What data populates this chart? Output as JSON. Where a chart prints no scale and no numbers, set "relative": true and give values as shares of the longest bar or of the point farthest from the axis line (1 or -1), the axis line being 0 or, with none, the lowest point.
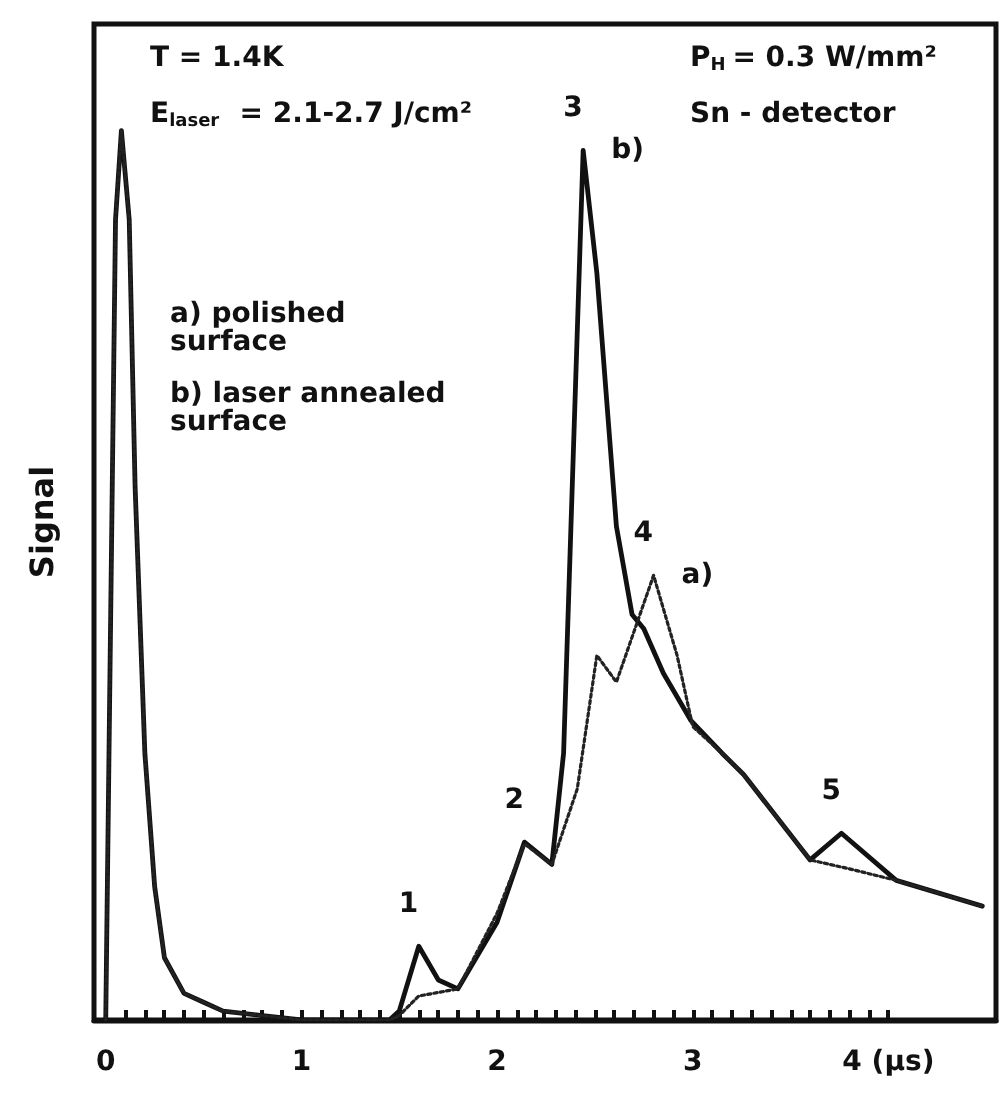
{
  "chart_data": {
    "type": "line",
    "relative": true,
    "ylabel": "Signal",
    "xlim": [
      -0.06,
      4.55
    ],
    "xticks": [
      0,
      {
        "value": 0.1,
        "label": null
      },
      {
        "value": 0.2,
        "label": null
      },
      {
        "value": 0.3,
        "label": null
      },
      {
        "value": 0.4,
        "label": null
      },
      {
        "value": 0.5,
        "label": null
      },
      {
        "value": 0.6,
        "label": null
      },
      {
        "value": 0.7,
        "label": null
      },
      {
        "value": 0.8,
        "label": null
      },
      {
        "value": 0.9,
        "label": null
      },
      1,
      {
        "value": 1.1,
        "label": null
      },
      {
        "value": 1.2,
        "label": null
      },
      {
        "value": 1.3,
        "label": null
      },
      {
        "value": 1.4,
        "label": null
      },
      {
        "value": 1.5,
        "label": null
      },
      {
        "value": 1.6,
        "label": null
      },
      {
        "value": 1.7,
        "label": null
      },
      {
        "value": 1.8,
        "label": null
      },
      {
        "value": 1.9,
        "label": null
      },
      2,
      {
        "value": 2.1,
        "label": null
      },
      {
        "value": 2.2,
        "label": null
      },
      {
        "value": 2.3,
        "label": null
      },
      {
        "value": 2.4,
        "label": null
      },
      {
        "value": 2.5,
        "label": null
      },
      {
        "value": 2.6,
        "label": null
      },
      {
        "value": 2.7,
        "label": null
      },
      {
        "value": 2.8,
        "label": null
      },
      {
        "value": 2.9,
        "label": null
      },
      3,
      {
        "value": 3.1,
        "label": null
      },
      {
        "value": 3.2,
        "label": null
      },
      {
        "value": 3.3,
        "label": null
      },
      {
        "value": 3.4,
        "label": null
      },
      {
        "value": 3.5,
        "label": null
      },
      {
        "value": 3.6,
        "label": null
      },
      {
        "value": 3.7,
        "label": null
      },
      {
        "value": 3.8,
        "label": null
      },
      {
        "value": 3.9,
        "label": null
      },
      {
        "value": 4,
        "label": "4 (µs)"
      }
    ],
    "grid": false,
    "legend": false,
    "series": [
      {
        "name": "a)",
        "color": "#222222",
        "line_style": "dotted",
        "x": [
          0,
          0.05,
          0.08,
          0.12,
          0.15,
          0.2,
          0.25,
          0.3,
          0.4,
          0.5,
          0.6,
          1.0,
          1.45,
          1.5,
          1.6,
          1.8,
          2.0,
          2.14,
          2.28,
          2.41,
          2.51,
          2.61,
          2.8,
          2.92,
          3.0,
          3.15,
          3.26,
          3.6,
          3.8,
          4.04,
          4.48
        ],
        "values": [
          0,
          0.9,
          1.0,
          0.9,
          0.6,
          0.3,
          0.15,
          0.07,
          0.03,
          0.02,
          0.01,
          0,
          0,
          0.005,
          0.027,
          0.035,
          0.12,
          0.198,
          0.175,
          0.26,
          0.41,
          0.38,
          0.5,
          0.41,
          0.33,
          0.3,
          0.276,
          0.18,
          0.17,
          0.157,
          0.128
        ]
      },
      {
        "name": "b)",
        "color": "#111111",
        "line_style": "solid",
        "x": [
          0,
          0.05,
          0.08,
          0.12,
          0.15,
          0.2,
          0.25,
          0.3,
          0.4,
          0.5,
          0.6,
          1.0,
          1.45,
          1.5,
          1.6,
          1.7,
          1.8,
          2.0,
          2.14,
          2.28,
          2.34,
          2.44,
          2.51,
          2.61,
          2.69,
          2.75,
          2.85,
          2.99,
          3.15,
          3.26,
          3.6,
          3.76,
          4.04,
          4.48
        ],
        "values": [
          0,
          0.9,
          1.0,
          0.9,
          0.6,
          0.3,
          0.15,
          0.07,
          0.03,
          0.02,
          0.01,
          0,
          0,
          0.01,
          0.083,
          0.045,
          0.035,
          0.11,
          0.2,
          0.175,
          0.3,
          0.978,
          0.84,
          0.555,
          0.456,
          0.44,
          0.39,
          0.337,
          0.3,
          0.276,
          0.18,
          0.21,
          0.157,
          0.128
        ]
      }
    ],
    "annotations": [
      "T = 1.4K",
      "E$_{laser}$ = 2.1-2.7 J/cm²",
      "P$_{H}$ = 0.3 W/mm²",
      "Sn - detector",
      "a) polished surface",
      "b) laser annealed surface",
      {
        "text": "1",
        "x": 1.6,
        "y": 0.083
      },
      {
        "text": "2",
        "x": 2.14,
        "y": 0.2
      },
      {
        "text": "3",
        "x": 2.44,
        "y": 0.978
      },
      {
        "text": "4",
        "x": 2.8,
        "y": 0.5
      },
      {
        "text": "5",
        "x": 3.76,
        "y": 0.21
      }
    ]
  }
}
